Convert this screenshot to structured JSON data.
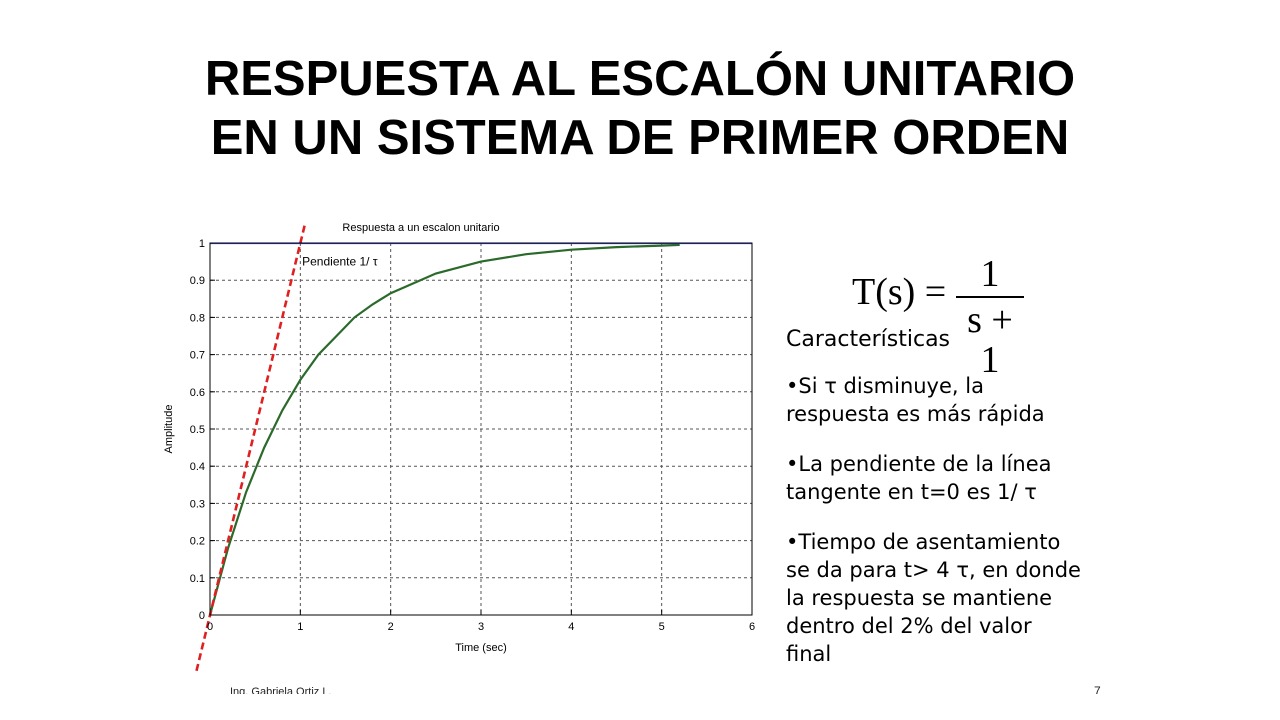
{
  "slide": {
    "title_line1": "RESPUESTA AL ESCALÓN UNITARIO",
    "title_line2": "EN UN SISTEMA DE PRIMER ORDEN",
    "author": "Ing. Gabriela Ortiz L.",
    "page_number": "7"
  },
  "formula": {
    "lhs": "T(s) =",
    "numerator": "1",
    "denominator": "s + 1"
  },
  "characteristics": {
    "heading": "Características",
    "items": [
      [
        "•Si τ disminuye, la",
        "respuesta es más rápida"
      ],
      [
        "•La pendiente de la línea",
        "tangente en t=0 es 1/ τ"
      ],
      [
        "•Tiempo de asentamiento",
        "se da para t> 4 τ, en donde",
        "la respuesta se mantiene",
        "dentro del 2% del valor",
        "final"
      ]
    ]
  },
  "chart_data": {
    "type": "line",
    "title": "Respuesta a un escalon unitario",
    "xlabel": "Time (sec)",
    "ylabel": "Amplitude",
    "xlim": [
      0,
      6
    ],
    "ylim": [
      0,
      1
    ],
    "xticks": [
      0,
      1,
      2,
      3,
      4,
      5,
      6
    ],
    "yticks": [
      0,
      0.1,
      0.2,
      0.3,
      0.4,
      0.5,
      0.6,
      0.7,
      0.8,
      0.9,
      1
    ],
    "grid": true,
    "annotation": "Pendiente 1/ τ",
    "series": [
      {
        "color": "#2b6a2b",
        "x": [
          0,
          0.2,
          0.4,
          0.6,
          0.8,
          1.0,
          1.2,
          1.4,
          1.6,
          1.8,
          2.0,
          2.5,
          3.0,
          3.5,
          4.0,
          4.5,
          5.0,
          5.2
        ],
        "y": [
          0,
          0.18,
          0.33,
          0.45,
          0.55,
          0.632,
          0.7,
          0.75,
          0.8,
          0.835,
          0.865,
          0.918,
          0.95,
          0.97,
          0.982,
          0.989,
          0.993,
          0.995
        ]
      },
      {
        "color": "#3344dd",
        "x": [
          0,
          6
        ],
        "y": [
          1,
          1
        ]
      },
      {
        "color": "#e02020",
        "dashed": true,
        "x": [
          -0.15,
          1.05
        ],
        "y": [
          -0.15,
          1.05
        ]
      }
    ]
  }
}
